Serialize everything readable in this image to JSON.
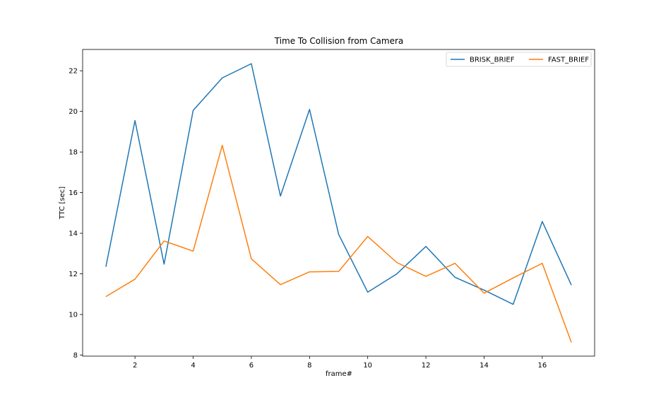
{
  "chart_data": {
    "type": "line",
    "title": "Time To Collision from Camera",
    "xlabel": "frame#",
    "ylabel": "TTC [sec]",
    "xlim": [
      0.2,
      17.8
    ],
    "ylim": [
      7.95,
      23.05
    ],
    "xticks": [
      2,
      4,
      6,
      8,
      10,
      12,
      14,
      16
    ],
    "yticks": [
      8,
      10,
      12,
      14,
      16,
      18,
      20,
      22
    ],
    "grid": false,
    "legend_position": "top-right",
    "x": [
      1,
      2,
      3,
      4,
      5,
      6,
      7,
      8,
      9,
      10,
      11,
      12,
      13,
      14,
      15,
      16,
      17
    ],
    "series": [
      {
        "name": "BRISK_BRIEF",
        "color": "#1f77b4",
        "values": [
          12.35,
          19.55,
          12.48,
          20.05,
          21.65,
          22.35,
          15.83,
          20.1,
          13.95,
          11.1,
          12.0,
          13.35,
          11.83,
          11.2,
          10.5,
          14.58,
          11.45
        ]
      },
      {
        "name": "FAST_BRIEF",
        "color": "#ff7f0e",
        "values": [
          10.88,
          11.74,
          13.62,
          13.12,
          18.33,
          12.74,
          11.47,
          12.1,
          12.12,
          13.84,
          12.56,
          11.88,
          12.52,
          11.05,
          11.8,
          12.52,
          8.63
        ]
      }
    ]
  }
}
